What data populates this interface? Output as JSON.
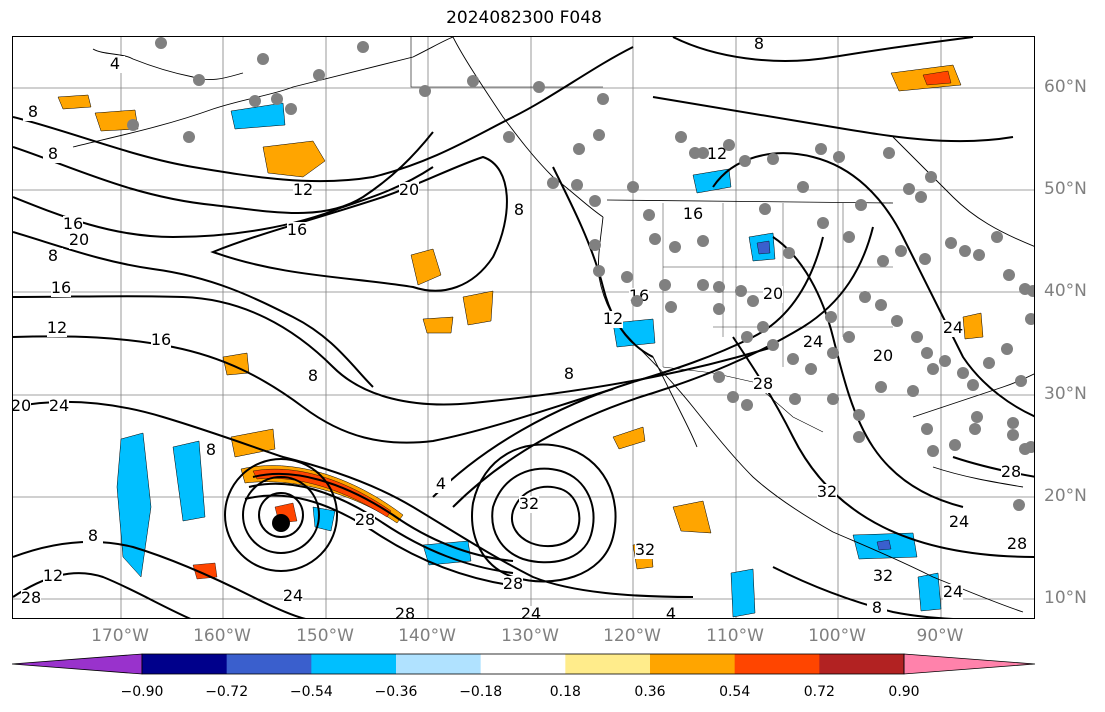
{
  "title": "2024082300 F048",
  "lon_labels": [
    "170°W",
    "160°W",
    "150°W",
    "140°W",
    "130°W",
    "120°W",
    "110°W",
    "100°W",
    "90°W"
  ],
  "lat_labels": [
    "60°N",
    "50°N",
    "40°N",
    "30°N",
    "20°N",
    "10°N"
  ],
  "contour_labels": [
    "4",
    "8",
    "8",
    "16",
    "12",
    "16",
    "20",
    "16",
    "20",
    "8",
    "12",
    "16",
    "24",
    "20",
    "8",
    "8",
    "4",
    "8",
    "32",
    "28",
    "24",
    "28",
    "28",
    "24",
    "12",
    "28",
    "8",
    "32",
    "8",
    "12",
    "16",
    "8",
    "12",
    "20",
    "24",
    "20",
    "24",
    "28",
    "32",
    "28",
    "24",
    "28",
    "24",
    "32",
    "16",
    "8",
    "4"
  ],
  "colorbar": {
    "tick_labels": [
      "−0.90",
      "−0.72",
      "−0.54",
      "−0.36",
      "−0.18",
      "0.18",
      "0.36",
      "0.54",
      "0.72",
      "0.90"
    ],
    "colors": [
      "#9932cc",
      "#00008b",
      "#3a5fcd",
      "#00bfff",
      "#b0e2ff",
      "#ffffff",
      "#ffec8b",
      "#ffa500",
      "#ff4500",
      "#b22222",
      "#ff82ab"
    ]
  },
  "colors": {
    "contour": "#000000",
    "coast": "#000000",
    "grid": "#808080",
    "station_dot": "#808080",
    "storm_marker": "#000000"
  }
}
